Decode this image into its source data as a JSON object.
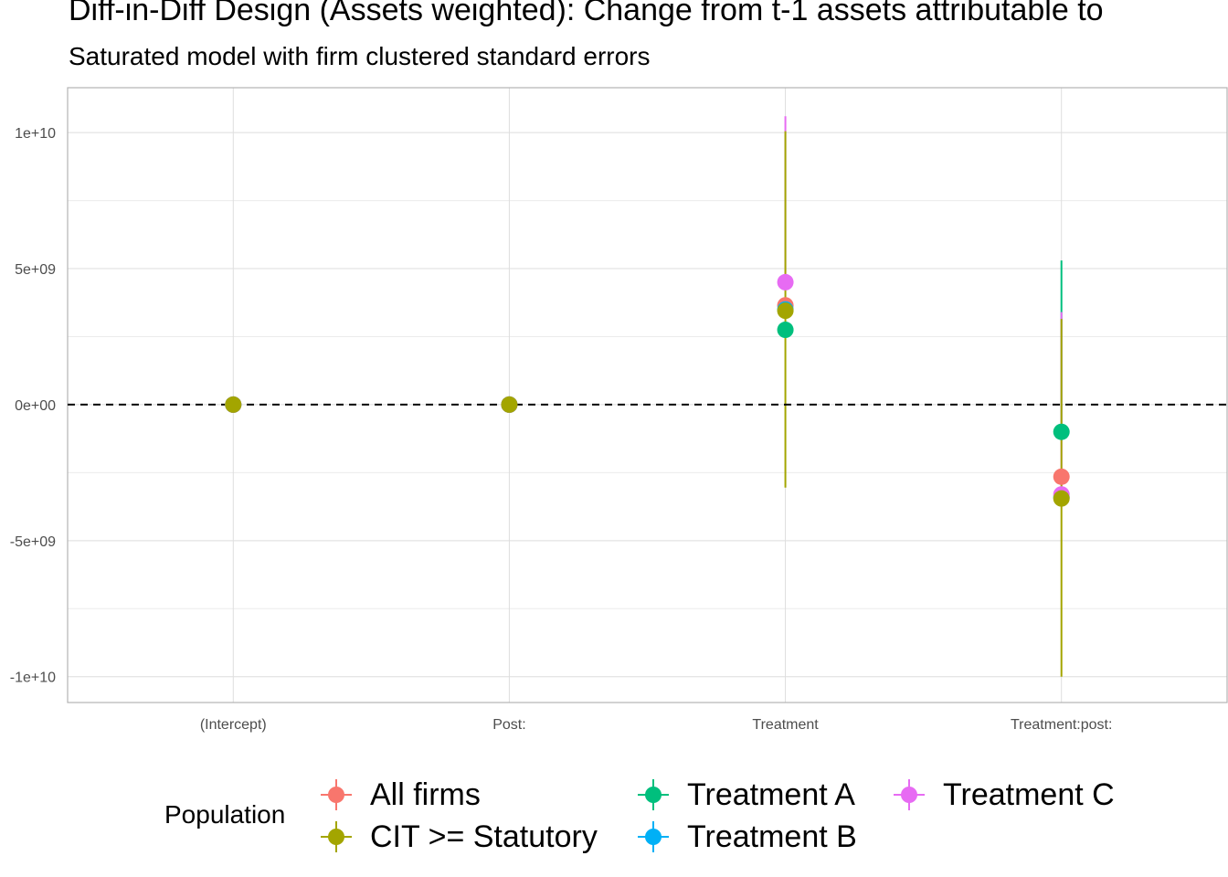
{
  "chart_data": {
    "type": "scatter",
    "title": "Diff-in-Diff Design (Assets weighted): Change from t-1 assets attributable to",
    "subtitle": "Saturated model with firm clustered standard errors",
    "xlabel": "",
    "ylabel": "",
    "categories": [
      "(Intercept)",
      "Post:",
      "Treatment",
      "Treatment:post:"
    ],
    "ylim": [
      -10950000000,
      11650000000
    ],
    "y_ticks": [
      10000000000,
      5000000000,
      0,
      -5000000000,
      -10000000000
    ],
    "y_tick_labels": [
      "1e+10",
      "5e+09",
      "0e+00",
      "-5e+09",
      "-1e+10"
    ],
    "grid": true,
    "reference_line": {
      "y": 0,
      "style": "dashed"
    },
    "legend": {
      "title": "Population",
      "position": "bottom"
    },
    "series": [
      {
        "name": "All firms",
        "color": "#F8766D",
        "values": [
          0,
          0,
          3650000000,
          -2650000000
        ],
        "lower": [
          0,
          0,
          3650000000,
          -2650000000
        ],
        "upper": [
          0,
          0,
          3650000000,
          -2650000000
        ]
      },
      {
        "name": "Treatment A",
        "color": "#00BF7D",
        "values": [
          0,
          0,
          2750000000,
          -1000000000
        ],
        "lower": [
          0,
          0,
          2750000000,
          -1000000000
        ],
        "upper": [
          0,
          0,
          2750000000,
          5300000000
        ]
      },
      {
        "name": "Treatment B",
        "color": "#00B0F6",
        "values": [
          0,
          0,
          3500000000,
          -3400000000
        ],
        "lower": [
          0,
          0,
          3500000000,
          -3400000000
        ],
        "upper": [
          0,
          0,
          3500000000,
          -3400000000
        ]
      },
      {
        "name": "Treatment C",
        "color": "#E76BF3",
        "values": [
          0,
          0,
          4500000000,
          -3300000000
        ],
        "lower": [
          0,
          0,
          4500000000,
          -3300000000
        ],
        "upper": [
          0,
          0,
          10600000000,
          3400000000
        ]
      },
      {
        "name": "CIT >= Statutory",
        "color": "#A3A500",
        "values": [
          0,
          0,
          3450000000,
          -3450000000
        ],
        "lower": [
          0,
          0,
          -3050000000,
          -10000000000
        ],
        "upper": [
          0,
          0,
          10050000000,
          3150000000
        ]
      }
    ]
  },
  "legend_items": [
    {
      "label": "All firms",
      "color": "#F8766D"
    },
    {
      "label": "CIT >= Statutory",
      "color": "#A3A500"
    },
    {
      "label": "Treatment A",
      "color": "#00BF7D"
    },
    {
      "label": "Treatment B",
      "color": "#00B0F6"
    },
    {
      "label": "Treatment C",
      "color": "#E76BF3"
    }
  ]
}
